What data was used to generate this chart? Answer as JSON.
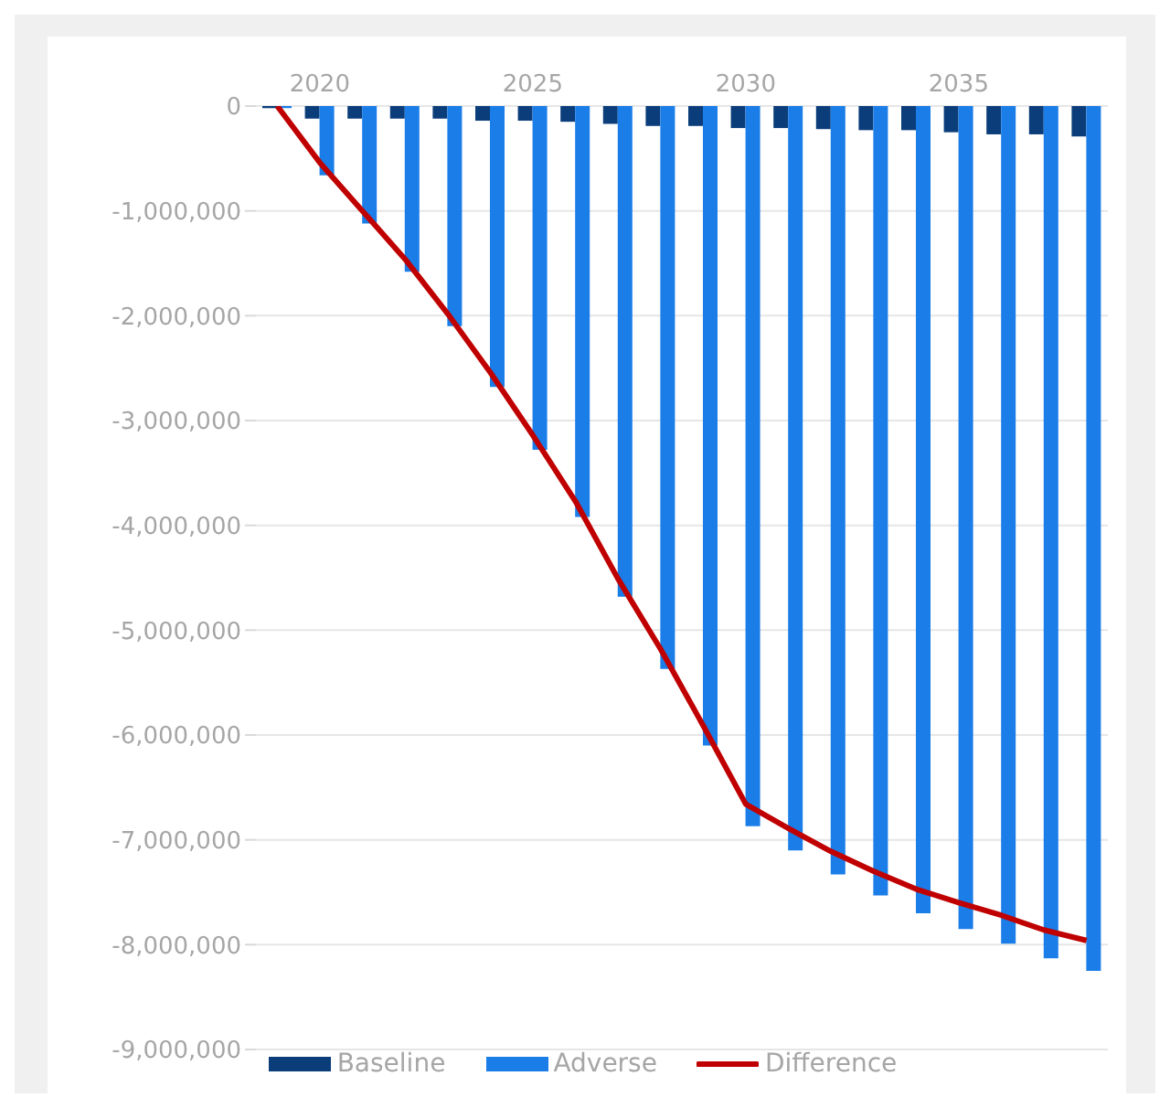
{
  "chart_data": {
    "type": "bar",
    "categories": [
      null,
      "2020",
      null,
      null,
      null,
      null,
      "2025",
      null,
      null,
      null,
      null,
      "2030",
      null,
      null,
      null,
      null,
      "2035",
      null,
      null,
      null
    ],
    "series": [
      {
        "name": "Baseline",
        "color": "#0b3d7a",
        "values": [
          -20000,
          -120000,
          -120000,
          -120000,
          -120000,
          -140000,
          -140000,
          -150000,
          -170000,
          -190000,
          -190000,
          -210000,
          -210000,
          -220000,
          -230000,
          -230000,
          -250000,
          -270000,
          -270000,
          -290000
        ]
      },
      {
        "name": "Adverse",
        "color": "#1a7de8",
        "values": [
          -20000,
          -660000,
          -1120000,
          -1580000,
          -2100000,
          -2680000,
          -3280000,
          -3920000,
          -4680000,
          -5370000,
          -6100000,
          -6870000,
          -7100000,
          -7330000,
          -7530000,
          -7700000,
          -7850000,
          -7990000,
          -8130000,
          -8250000
        ]
      },
      {
        "name": "Difference",
        "type": "line",
        "color": "#c00000",
        "values": [
          0,
          -540000,
          -1000000,
          -1460000,
          -1980000,
          -2540000,
          -3140000,
          -3770000,
          -4510000,
          -5180000,
          -5910000,
          -6660000,
          -6890000,
          -7110000,
          -7300000,
          -7470000,
          -7600000,
          -7720000,
          -7860000,
          -7960000
        ]
      }
    ],
    "ylim": [
      -9000000,
      0
    ],
    "yticks": [
      0,
      {
        "value": -1000000,
        "label": "-1,000,000"
      },
      {
        "value": -2000000,
        "label": "-2,000,000"
      },
      {
        "value": -3000000,
        "label": "-3,000,000"
      },
      {
        "value": -4000000,
        "label": "-4,000,000"
      },
      {
        "value": -5000000,
        "label": "-5,000,000"
      },
      {
        "value": -6000000,
        "label": "-6,000,000"
      },
      {
        "value": -7000000,
        "label": "-7,000,000"
      },
      {
        "value": -8000000,
        "label": "-8,000,000"
      },
      {
        "value": -9000000,
        "label": "-9,000,000"
      }
    ],
    "grid": "y",
    "legend": "bottom",
    "marker": "none"
  }
}
